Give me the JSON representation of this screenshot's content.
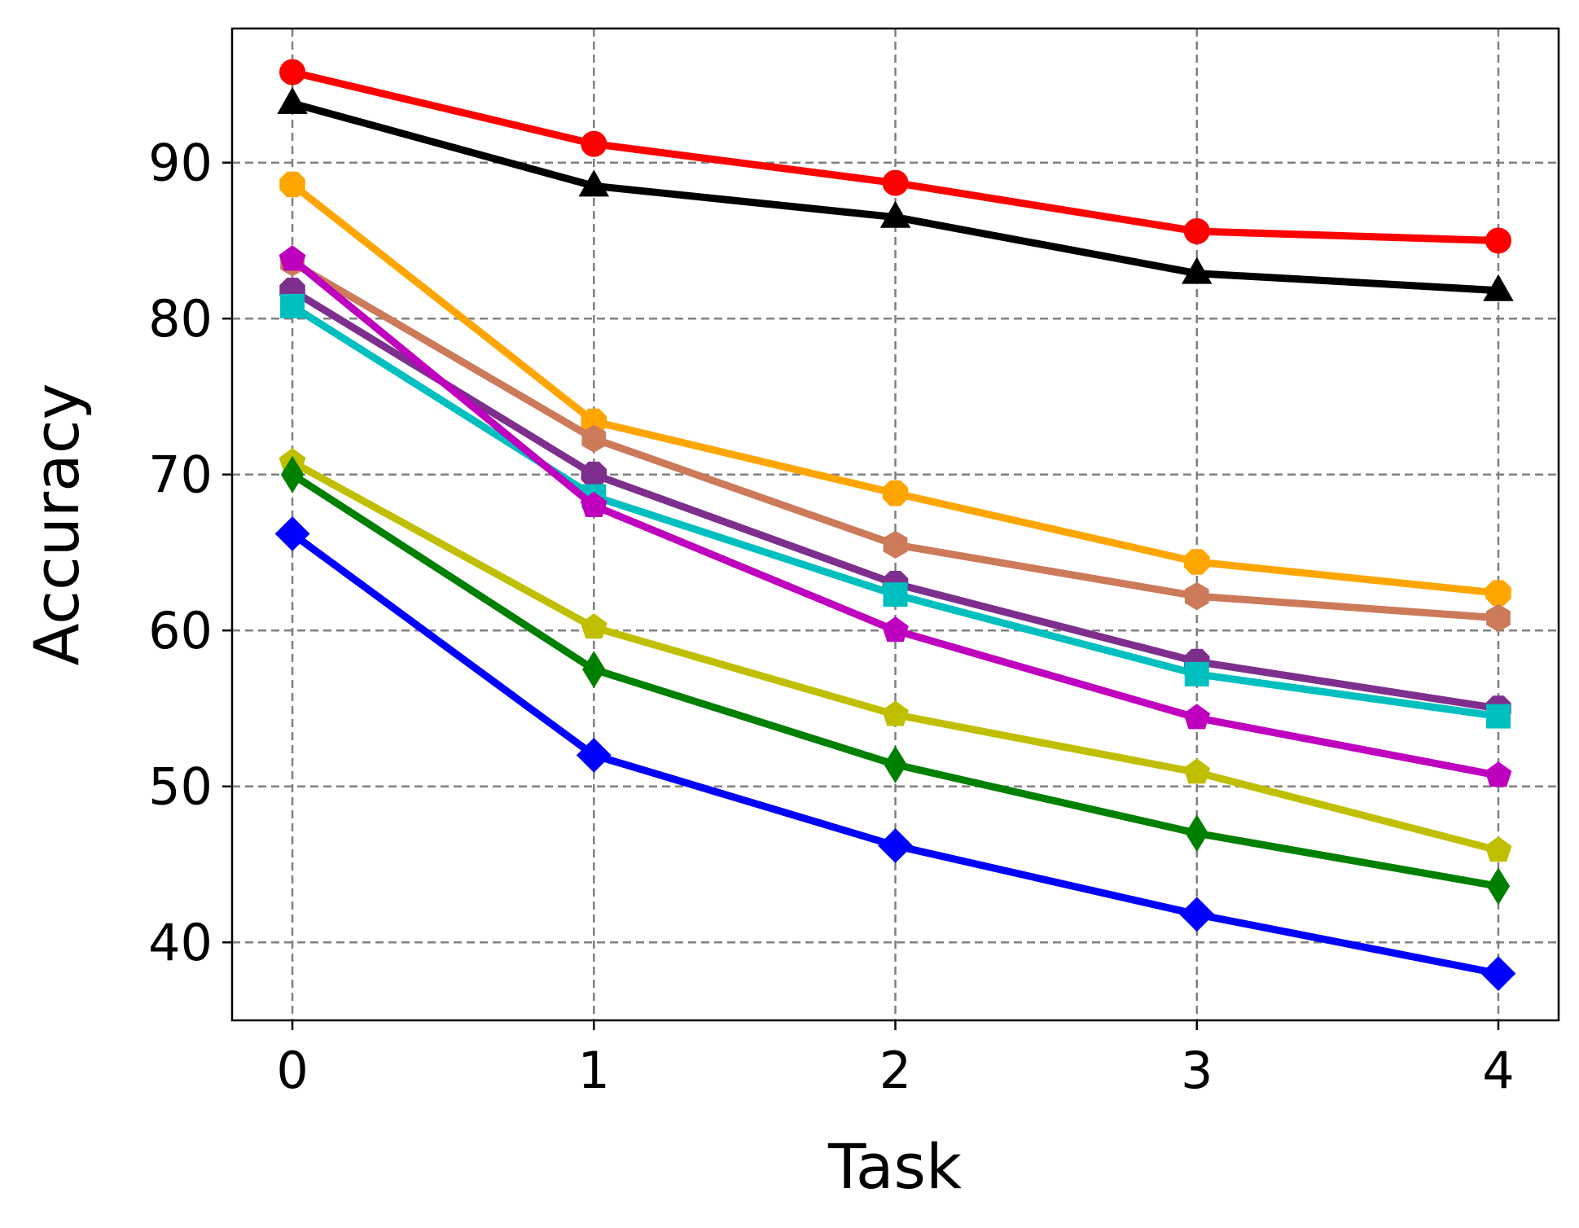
{
  "chart_data": {
    "type": "line",
    "title": "",
    "xlabel": "Task",
    "ylabel": "Accuracy",
    "x": [
      0,
      1,
      2,
      3,
      4
    ],
    "xticks": [
      "0",
      "1",
      "2",
      "3",
      "4"
    ],
    "yticks": [
      "40",
      "50",
      "60",
      "70",
      "80",
      "90"
    ],
    "xlim": [
      -0.2,
      4.2
    ],
    "ylim": [
      35,
      98.6
    ],
    "grid": true,
    "series": [
      {
        "color": "#ff0000",
        "marker": "circle",
        "values": [
          95.8,
          91.2,
          88.7,
          85.6,
          85.0
        ]
      },
      {
        "color": "#000000",
        "marker": "triangle",
        "values": [
          93.8,
          88.5,
          86.5,
          82.9,
          81.8
        ]
      },
      {
        "color": "#ffa500",
        "marker": "octagon",
        "values": [
          88.6,
          73.4,
          68.8,
          64.4,
          62.4
        ]
      },
      {
        "color": "#cc7a5a",
        "marker": "hexagon",
        "values": [
          83.6,
          72.3,
          65.5,
          62.2,
          60.8
        ]
      },
      {
        "color": "#7e2f8e",
        "marker": "octagon",
        "values": [
          81.8,
          70.0,
          63.0,
          58.0,
          55.0
        ]
      },
      {
        "color": "#00bfbf",
        "marker": "square",
        "values": [
          80.8,
          68.6,
          62.3,
          57.2,
          54.5
        ]
      },
      {
        "color": "#bf00bf",
        "marker": "pentagon",
        "values": [
          83.8,
          68.0,
          60.0,
          54.4,
          50.7
        ]
      },
      {
        "color": "#bfbf00",
        "marker": "pentagon",
        "values": [
          70.8,
          60.2,
          54.6,
          50.9,
          45.9
        ]
      },
      {
        "color": "#008000",
        "marker": "thin_diamond",
        "values": [
          70.0,
          57.5,
          51.4,
          47.0,
          43.6
        ]
      },
      {
        "color": "#0000ff",
        "marker": "diamond",
        "values": [
          66.2,
          52.0,
          46.2,
          41.8,
          38.0
        ]
      }
    ]
  }
}
